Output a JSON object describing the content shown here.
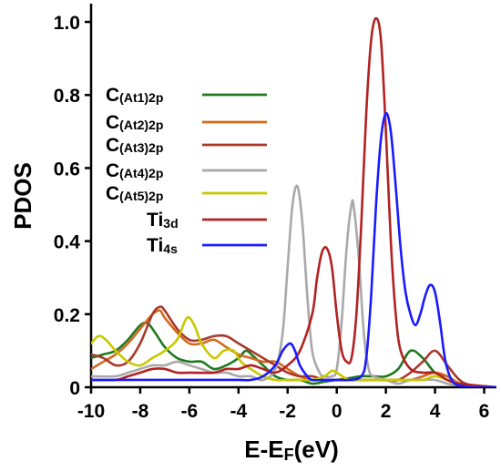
{
  "chart_data": {
    "type": "line",
    "xlabel_main": "E-E",
    "xlabel_sub": "F",
    "xlabel_tail": "(eV)",
    "ylabel": "PDOS",
    "xlim": [
      -10,
      6.5
    ],
    "ylim": [
      0,
      1.05
    ],
    "xticks": [
      -10,
      -8,
      -6,
      -4,
      -2,
      0,
      2,
      4,
      6
    ],
    "xtick_labels": [
      "-10",
      "-8",
      "-6",
      "-4",
      "-2",
      "0",
      "2",
      "4",
      "6"
    ],
    "yticks": [
      0,
      0.2,
      0.4,
      0.6,
      0.8,
      1.0
    ],
    "ytick_labels": [
      "0",
      "0.2",
      "0.4",
      "0.6",
      "0.8",
      "1.0"
    ],
    "grid": false,
    "legend_position": "upper-left-inside",
    "series": [
      {
        "name": "C(At1)2p",
        "name_main": "C",
        "name_sub": "(At1)2p",
        "color": "#1f7a1f",
        "x": [
          -10,
          -9.5,
          -9,
          -8.5,
          -8,
          -7.7,
          -7.4,
          -7,
          -6.5,
          -6,
          -5.5,
          -5,
          -4.5,
          -4,
          -3.7,
          -3.4,
          -3,
          -2.5,
          -2,
          -1.5,
          -1,
          -0.5,
          0,
          0.5,
          1,
          1.5,
          2,
          2.5,
          3,
          3.5,
          4,
          4.5,
          5,
          5.5,
          6.5
        ],
        "y": [
          0.08,
          0.09,
          0.1,
          0.13,
          0.17,
          0.175,
          0.15,
          0.11,
          0.08,
          0.07,
          0.07,
          0.05,
          0.06,
          0.08,
          0.1,
          0.085,
          0.06,
          0.03,
          0.02,
          0.02,
          0.01,
          0.015,
          0.02,
          0.025,
          0.03,
          0.03,
          0.03,
          0.05,
          0.1,
          0.08,
          0.04,
          0.03,
          0.01,
          0.005,
          0
        ]
      },
      {
        "name": "C(At2)2p",
        "name_main": "C",
        "name_sub": "(At2)2p",
        "color": "#d2691e",
        "x": [
          -10,
          -9.5,
          -9,
          -8.5,
          -8,
          -7.5,
          -7.2,
          -7,
          -6.5,
          -6,
          -5.5,
          -5,
          -4.5,
          -4,
          -3.5,
          -3,
          -2.5,
          -2,
          -1.5,
          -1,
          -0.5,
          0,
          0.5,
          1,
          1.5,
          2,
          2.5,
          3,
          3.5,
          4,
          4.5,
          5,
          5.5,
          6.5
        ],
        "y": [
          0.05,
          0.07,
          0.09,
          0.12,
          0.16,
          0.2,
          0.21,
          0.19,
          0.15,
          0.12,
          0.12,
          0.13,
          0.11,
          0.09,
          0.08,
          0.07,
          0.07,
          0.05,
          0.03,
          0.02,
          0.02,
          0.02,
          0.02,
          0.02,
          0.02,
          0.02,
          0.02,
          0.02,
          0.03,
          0.04,
          0.03,
          0.01,
          0.005,
          0
        ]
      },
      {
        "name": "C(At3)2p",
        "name_main": "C",
        "name_sub": "(At3)2p",
        "color": "#a83a2a",
        "x": [
          -10,
          -9.5,
          -9,
          -8.5,
          -8,
          -7.5,
          -7.2,
          -7,
          -6.5,
          -6,
          -5.5,
          -5,
          -4.5,
          -4,
          -3.5,
          -3,
          -2.5,
          -2,
          -1.5,
          -1,
          -0.5,
          0,
          0.5,
          1,
          1.5,
          2,
          2.5,
          3,
          3.5,
          4,
          4.5,
          5,
          5.5,
          6.5
        ],
        "y": [
          0.09,
          0.08,
          0.06,
          0.07,
          0.12,
          0.2,
          0.22,
          0.21,
          0.16,
          0.13,
          0.13,
          0.14,
          0.14,
          0.12,
          0.1,
          0.08,
          0.06,
          0.04,
          0.03,
          0.03,
          0.02,
          0.02,
          0.02,
          0.02,
          0.02,
          0.02,
          0.02,
          0.04,
          0.07,
          0.1,
          0.06,
          0.02,
          0.005,
          0
        ]
      },
      {
        "name": "C(At4)2p",
        "name_main": "C",
        "name_sub": "(At4)2p",
        "color": "#a9a9a9",
        "x": [
          -10,
          -9,
          -8.5,
          -8,
          -7.5,
          -7,
          -6.5,
          -6,
          -5.5,
          -5,
          -4.5,
          -4,
          -3.5,
          -3,
          -2.5,
          -2.2,
          -2,
          -1.8,
          -1.6,
          -1.4,
          -1.2,
          -1,
          -0.7,
          -0.5,
          -0.2,
          0,
          0.2,
          0.4,
          0.6,
          0.7,
          0.9,
          1.1,
          1.3,
          1.5,
          2,
          2.5,
          3,
          3.5,
          4,
          4.5,
          5,
          6.5
        ],
        "y": [
          0.03,
          0.03,
          0.04,
          0.05,
          0.06,
          0.06,
          0.07,
          0.06,
          0.05,
          0.04,
          0.04,
          0.03,
          0.03,
          0.02,
          0.05,
          0.15,
          0.33,
          0.5,
          0.55,
          0.45,
          0.25,
          0.1,
          0.04,
          0.03,
          0.03,
          0.05,
          0.18,
          0.38,
          0.5,
          0.49,
          0.35,
          0.15,
          0.05,
          0.03,
          0.02,
          0.01,
          0.02,
          0.02,
          0.02,
          0.01,
          0.005,
          0
        ]
      },
      {
        "name": "C(At5)2p",
        "name_main": "C",
        "name_sub": "(At5)2p",
        "color": "#c8c800",
        "x": [
          -10,
          -9.7,
          -9.4,
          -9,
          -8.5,
          -8,
          -7.5,
          -7,
          -6.5,
          -6.1,
          -5.8,
          -5.5,
          -5,
          -4.6,
          -4.2,
          -3.9,
          -3.5,
          -3,
          -2.5,
          -2,
          -1.5,
          -1,
          -0.5,
          -0.2,
          0,
          0.5,
          1,
          1.5,
          2,
          2.5,
          3,
          3.5,
          4,
          4.5,
          5,
          5.5,
          6.5
        ],
        "y": [
          0.12,
          0.14,
          0.13,
          0.1,
          0.07,
          0.06,
          0.08,
          0.1,
          0.13,
          0.19,
          0.17,
          0.12,
          0.08,
          0.1,
          0.1,
          0.07,
          0.05,
          0.03,
          0.02,
          0.02,
          0.02,
          0.02,
          0.03,
          0.045,
          0.04,
          0.02,
          0.02,
          0.02,
          0.02,
          0.02,
          0.02,
          0.02,
          0.03,
          0.02,
          0.01,
          0.005,
          0
        ]
      },
      {
        "name": "Ti3d",
        "name_main": "Ti",
        "name_sub": "3d",
        "color": "#b22222",
        "x": [
          -10,
          -9,
          -8.5,
          -8,
          -7.5,
          -7,
          -6.5,
          -6,
          -5,
          -4.5,
          -4,
          -3.5,
          -3,
          -2.5,
          -2,
          -1.5,
          -1,
          -0.8,
          -0.6,
          -0.4,
          -0.2,
          0,
          0.2,
          0.4,
          0.6,
          0.8,
          1,
          1.2,
          1.4,
          1.6,
          1.8,
          2,
          2.2,
          2.4,
          2.6,
          3,
          3.5,
          4,
          4.5,
          5,
          6.5
        ],
        "y": [
          0.02,
          0.02,
          0.03,
          0.04,
          0.05,
          0.05,
          0.04,
          0.04,
          0.04,
          0.05,
          0.05,
          0.06,
          0.05,
          0.04,
          0.06,
          0.1,
          0.2,
          0.3,
          0.37,
          0.38,
          0.33,
          0.2,
          0.1,
          0.07,
          0.08,
          0.2,
          0.45,
          0.75,
          0.95,
          1.01,
          0.95,
          0.7,
          0.4,
          0.2,
          0.1,
          0.05,
          0.04,
          0.04,
          0.02,
          0.01,
          0
        ]
      },
      {
        "name": "Ti4s",
        "name_main": "Ti",
        "name_sub": "4s",
        "color": "#1a1aff",
        "x": [
          -10,
          -9,
          -8,
          -7,
          -6,
          -5,
          -4,
          -3.5,
          -3,
          -2.5,
          -2.2,
          -1.9,
          -1.7,
          -1.5,
          -1.2,
          -1,
          -0.5,
          0,
          0.5,
          1,
          1.2,
          1.4,
          1.6,
          1.8,
          2,
          2.2,
          2.4,
          2.6,
          2.8,
          3,
          3.2,
          3.4,
          3.6,
          3.8,
          4,
          4.2,
          4.4,
          4.6,
          4.8,
          5,
          5.5,
          6.5
        ],
        "y": [
          0.02,
          0.02,
          0.02,
          0.02,
          0.02,
          0.02,
          0.02,
          0.02,
          0.03,
          0.06,
          0.1,
          0.12,
          0.1,
          0.06,
          0.03,
          0.02,
          0.02,
          0.02,
          0.02,
          0.03,
          0.08,
          0.25,
          0.5,
          0.68,
          0.75,
          0.7,
          0.55,
          0.38,
          0.26,
          0.2,
          0.17,
          0.2,
          0.25,
          0.28,
          0.26,
          0.18,
          0.08,
          0.03,
          0.01,
          0.005,
          0,
          0
        ]
      }
    ]
  }
}
